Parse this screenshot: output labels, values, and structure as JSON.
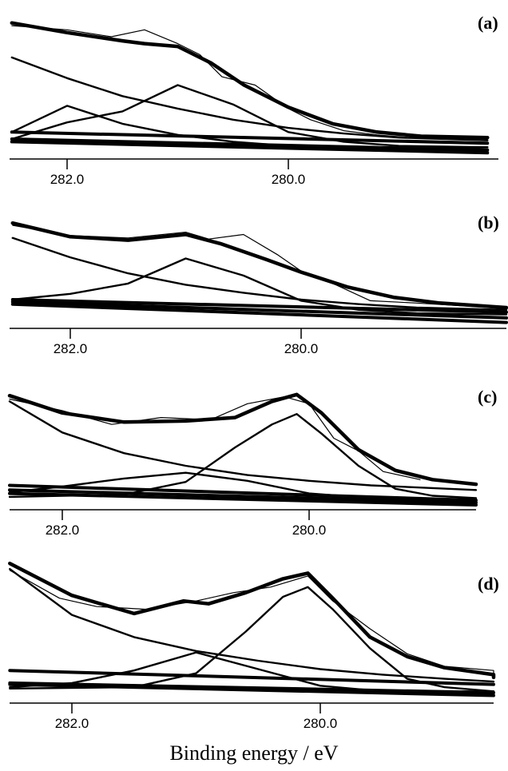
{
  "figure": {
    "xlabel": "Binding energy / eV"
  },
  "chart_data": [
    {
      "type": "line",
      "panel_label": "(a)",
      "xlabel": "Binding energy / eV",
      "x_ticks": [
        282.0,
        280.0
      ],
      "x_tick_labels": [
        "282.0",
        "280.0"
      ],
      "xlim": [
        282.5,
        278.2
      ],
      "x_reversed": true,
      "y_axis_shown": false,
      "series": [
        {
          "role": "envelope",
          "x": [
            282.5,
            282.0,
            281.5,
            281.3,
            281.0,
            280.7,
            280.4,
            280.0,
            279.6,
            279.2,
            278.8,
            278.2
          ],
          "values": [
            0.95,
            0.88,
            0.82,
            0.8,
            0.78,
            0.66,
            0.5,
            0.34,
            0.22,
            0.16,
            0.13,
            0.12
          ]
        },
        {
          "role": "measured",
          "x": [
            282.5,
            282.0,
            281.6,
            281.3,
            281.0,
            280.8,
            280.6,
            280.3,
            280.0,
            279.8,
            279.5,
            279.2,
            278.9
          ],
          "values": [
            0.93,
            0.9,
            0.85,
            0.9,
            0.8,
            0.72,
            0.56,
            0.5,
            0.33,
            0.25,
            0.17,
            0.14,
            0.12
          ]
        },
        {
          "role": "component",
          "x": [
            282.5,
            282.0,
            281.5,
            281.0,
            280.5,
            280.0,
            279.5,
            279.0,
            278.2
          ],
          "values": [
            0.11,
            0.23,
            0.31,
            0.5,
            0.36,
            0.16,
            0.09,
            0.06,
            0.05
          ]
        },
        {
          "role": "component",
          "x": [
            282.5,
            282.0,
            281.5,
            281.0,
            280.5,
            280.0,
            279.5,
            278.2
          ],
          "values": [
            0.16,
            0.35,
            0.22,
            0.14,
            0.09,
            0.06,
            0.05,
            0.05
          ]
        },
        {
          "role": "component",
          "x": [
            282.5,
            282.0,
            281.5,
            281.0,
            280.5,
            280.0,
            279.5,
            279.0,
            278.2
          ],
          "values": [
            0.7,
            0.55,
            0.42,
            0.33,
            0.25,
            0.19,
            0.15,
            0.12,
            0.1
          ]
        },
        {
          "role": "background",
          "x": [
            282.5,
            278.2
          ],
          "values": [
            0.16,
            0.08
          ]
        },
        {
          "role": "background",
          "x": [
            282.5,
            278.2
          ],
          "values": [
            0.11,
            0.03
          ]
        },
        {
          "role": "background",
          "x": [
            282.5,
            278.2
          ],
          "values": [
            0.09,
            0.01
          ]
        }
      ]
    },
    {
      "type": "line",
      "panel_label": "(b)",
      "xlabel": "Binding energy / eV",
      "x_ticks": [
        282.0,
        280.0
      ],
      "x_tick_labels": [
        "282.0",
        "280.0"
      ],
      "xlim": [
        282.5,
        278.2
      ],
      "x_reversed": true,
      "y_axis_shown": false,
      "series": [
        {
          "role": "envelope",
          "x": [
            282.5,
            282.0,
            281.5,
            281.0,
            280.7,
            280.3,
            280.0,
            279.6,
            279.2,
            278.8,
            278.2
          ],
          "values": [
            0.88,
            0.76,
            0.73,
            0.78,
            0.7,
            0.56,
            0.45,
            0.32,
            0.23,
            0.18,
            0.14
          ]
        },
        {
          "role": "measured",
          "x": [
            282.5,
            282.0,
            281.5,
            281.0,
            280.8,
            280.5,
            280.2,
            280.0,
            279.7,
            279.4,
            279.0,
            278.5,
            278.2
          ],
          "values": [
            0.86,
            0.77,
            0.75,
            0.8,
            0.74,
            0.78,
            0.6,
            0.46,
            0.34,
            0.2,
            0.18,
            0.15,
            0.13
          ]
        },
        {
          "role": "component",
          "x": [
            282.5,
            282.0,
            281.5,
            281.0,
            280.5,
            280.0,
            279.5,
            279.0,
            278.2
          ],
          "values": [
            0.21,
            0.26,
            0.35,
            0.57,
            0.42,
            0.2,
            0.12,
            0.09,
            0.08
          ]
        },
        {
          "role": "component",
          "x": [
            282.5,
            282.0,
            281.5,
            281.0,
            280.5,
            280.0,
            279.5,
            279.0,
            278.2
          ],
          "values": [
            0.75,
            0.58,
            0.44,
            0.34,
            0.27,
            0.21,
            0.17,
            0.14,
            0.12
          ]
        },
        {
          "role": "background",
          "x": [
            282.5,
            278.2
          ],
          "values": [
            0.21,
            0.1
          ]
        },
        {
          "role": "background",
          "x": [
            282.5,
            278.2
          ],
          "values": [
            0.19,
            0.05
          ]
        },
        {
          "role": "background",
          "x": [
            282.5,
            278.2
          ],
          "values": [
            0.17,
            0.01
          ]
        }
      ]
    },
    {
      "type": "line",
      "panel_label": "(c)",
      "xlabel": "Binding energy / eV",
      "x_ticks": [
        282.0,
        280.0
      ],
      "x_tick_labels": [
        "282.0",
        "280.0"
      ],
      "xlim": [
        282.5,
        278.2
      ],
      "x_reversed": true,
      "y_axis_shown": false,
      "series": [
        {
          "role": "envelope",
          "x": [
            282.5,
            282.0,
            281.5,
            281.0,
            280.6,
            280.3,
            280.1,
            279.9,
            279.6,
            279.3,
            279.0,
            278.6
          ],
          "values": [
            0.95,
            0.8,
            0.72,
            0.73,
            0.76,
            0.9,
            0.96,
            0.8,
            0.48,
            0.3,
            0.22,
            0.18
          ]
        },
        {
          "role": "measured",
          "x": [
            282.5,
            282.0,
            281.6,
            281.2,
            280.8,
            280.5,
            280.2,
            280.0,
            279.8,
            279.6,
            279.4,
            279.1
          ],
          "values": [
            0.92,
            0.82,
            0.7,
            0.76,
            0.74,
            0.88,
            0.94,
            0.88,
            0.58,
            0.47,
            0.29,
            0.22
          ]
        },
        {
          "role": "component",
          "x": [
            282.5,
            281.5,
            281.0,
            280.6,
            280.3,
            280.1,
            279.9,
            279.6,
            279.3,
            279.0,
            278.6
          ],
          "values": [
            0.07,
            0.09,
            0.2,
            0.5,
            0.7,
            0.79,
            0.62,
            0.34,
            0.14,
            0.08,
            0.06
          ]
        },
        {
          "role": "component",
          "x": [
            282.5,
            282.0,
            281.5,
            281.0,
            280.5,
            280.0,
            279.5,
            278.6
          ],
          "values": [
            0.11,
            0.16,
            0.23,
            0.28,
            0.21,
            0.1,
            0.06,
            0.05
          ]
        },
        {
          "role": "component",
          "x": [
            282.5,
            282.0,
            281.5,
            281.0,
            280.5,
            280.0,
            279.5,
            278.6
          ],
          "values": [
            0.9,
            0.63,
            0.45,
            0.34,
            0.26,
            0.21,
            0.17,
            0.13
          ]
        },
        {
          "role": "background",
          "x": [
            282.5,
            278.6
          ],
          "values": [
            0.17,
            0.04
          ]
        },
        {
          "role": "background",
          "x": [
            282.5,
            278.6
          ],
          "values": [
            0.13,
            0.02
          ]
        },
        {
          "role": "background",
          "x": [
            282.5,
            278.6
          ],
          "values": [
            0.1,
            0.0
          ]
        }
      ]
    },
    {
      "type": "line",
      "panel_label": "(d)",
      "xlabel": "Binding energy / eV",
      "x_ticks": [
        282.0,
        280.0
      ],
      "x_tick_labels": [
        "282.0",
        "280.0"
      ],
      "xlim": [
        282.5,
        278.2
      ],
      "x_reversed": true,
      "y_axis_shown": false,
      "series": [
        {
          "role": "envelope",
          "x": [
            282.5,
            282.0,
            281.5,
            281.1,
            280.9,
            280.6,
            280.3,
            280.1,
            279.9,
            279.6,
            279.3,
            279.0,
            278.5,
            278.2
          ],
          "values": [
            0.97,
            0.74,
            0.61,
            0.7,
            0.68,
            0.76,
            0.86,
            0.9,
            0.72,
            0.44,
            0.3,
            0.22,
            0.17,
            0.15
          ]
        },
        {
          "role": "measured",
          "x": [
            282.5,
            282.1,
            281.8,
            281.4,
            281.0,
            280.7,
            280.4,
            280.1,
            279.9,
            279.6,
            279.3,
            279.0,
            278.6,
            278.3
          ],
          "values": [
            0.92,
            0.72,
            0.66,
            0.64,
            0.7,
            0.76,
            0.8,
            0.88,
            0.7,
            0.5,
            0.32,
            0.23,
            0.2,
            0.16
          ]
        },
        {
          "role": "component",
          "x": [
            282.5,
            281.5,
            281.0,
            280.6,
            280.3,
            280.1,
            279.9,
            279.6,
            279.3,
            279.0,
            278.2
          ],
          "values": [
            0.07,
            0.08,
            0.18,
            0.48,
            0.73,
            0.8,
            0.64,
            0.36,
            0.14,
            0.08,
            0.05
          ]
        },
        {
          "role": "component",
          "x": [
            282.5,
            282.0,
            281.5,
            281.0,
            280.5,
            280.0,
            279.5,
            278.2
          ],
          "values": [
            0.08,
            0.11,
            0.2,
            0.33,
            0.21,
            0.09,
            0.05,
            0.05
          ]
        },
        {
          "role": "component",
          "x": [
            282.5,
            282.0,
            281.5,
            281.0,
            280.5,
            280.0,
            279.5,
            279.0,
            278.2
          ],
          "values": [
            0.93,
            0.6,
            0.44,
            0.34,
            0.27,
            0.21,
            0.17,
            0.14,
            0.12
          ]
        },
        {
          "role": "background",
          "x": [
            282.5,
            278.2
          ],
          "values": [
            0.2,
            0.1
          ]
        },
        {
          "role": "background",
          "x": [
            282.5,
            278.2
          ],
          "values": [
            0.11,
            0.04
          ]
        },
        {
          "role": "background",
          "x": [
            282.5,
            278.2
          ],
          "values": [
            0.1,
            0.02
          ]
        }
      ]
    }
  ]
}
